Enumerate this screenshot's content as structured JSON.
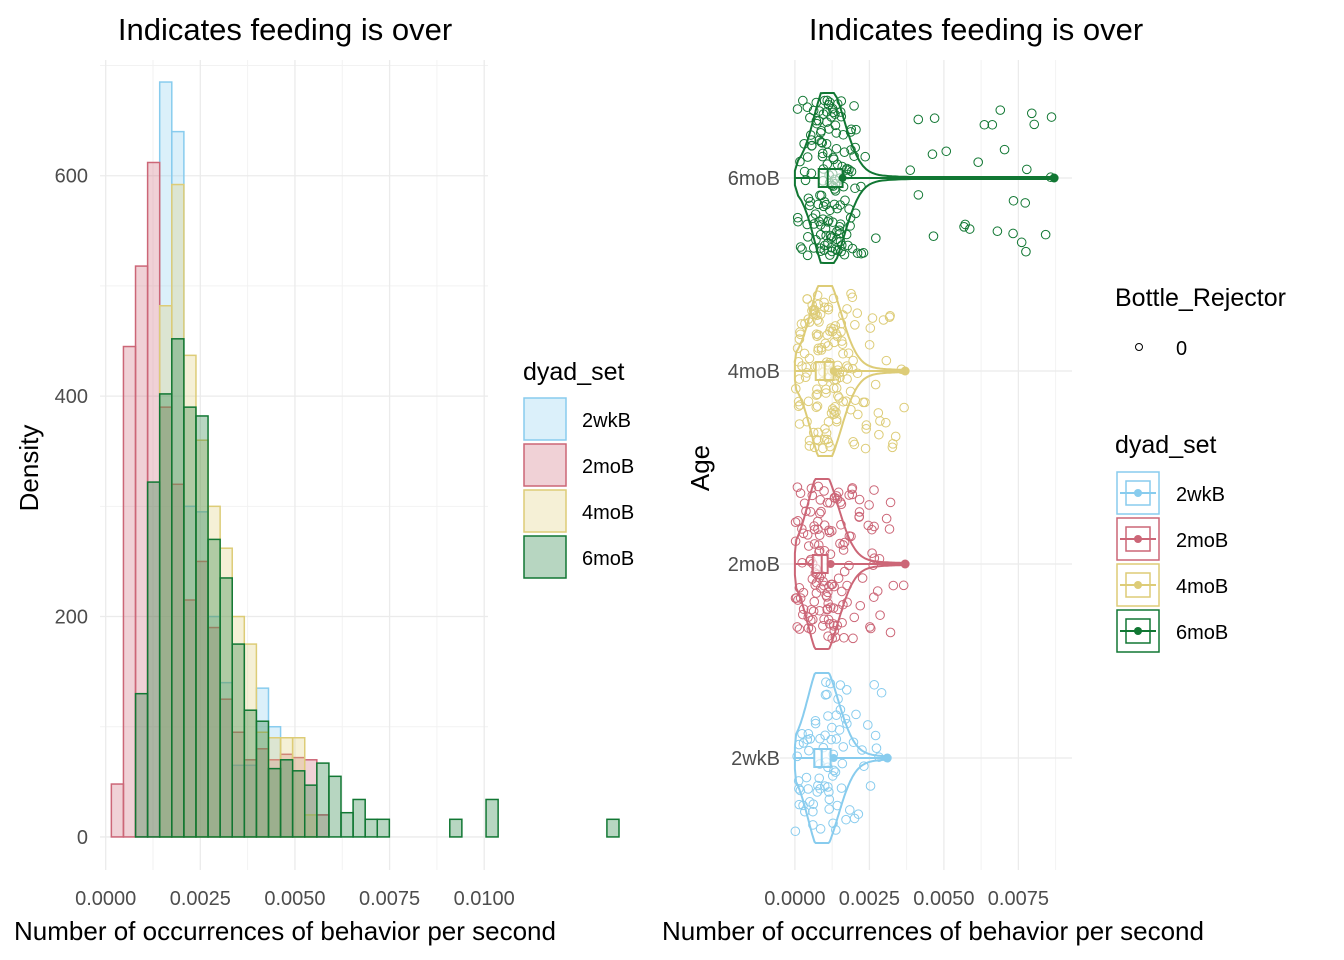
{
  "chart_data": [
    {
      "type": "histogram",
      "title": "Indicates feeding is over",
      "xlabel": "Number of occurrences of behavior per second",
      "ylabel": "Density",
      "xlim": [
        -0.00015,
        0.0101
      ],
      "ylim": [
        -30,
        705
      ],
      "xticks": [
        0.0,
        0.0025,
        0.005,
        0.0075,
        0.01
      ],
      "xtick_labels": [
        "0.0000",
        "0.0025",
        "0.0050",
        "0.0075",
        "0.0100"
      ],
      "yticks": [
        0,
        200,
        400,
        600
      ],
      "ytick_labels": [
        "0",
        "200",
        "400",
        "600"
      ],
      "bin_width": 0.0003193,
      "first_bin_left": 0.00015,
      "grid": true,
      "legend": {
        "title": "dyad_set",
        "position": "right"
      },
      "series": [
        {
          "name": "2wkB",
          "color": "#88CCEE",
          "values": [
            0,
            0,
            0,
            0,
            685,
            640,
            300,
            295,
            200,
            140,
            65,
            65,
            135,
            100,
            70
          ]
        },
        {
          "name": "2moB",
          "color": "#CC6677",
          "values": [
            48,
            445,
            518,
            612,
            390,
            320,
            215,
            250,
            190,
            125,
            95,
            70,
            80,
            70,
            75,
            72,
            70,
            20
          ]
        },
        {
          "name": "4moB",
          "color": "#DDCC77",
          "values": [
            0,
            0,
            0,
            0,
            482,
            592,
            437,
            360,
            300,
            262,
            200,
            175,
            95,
            90,
            90,
            90,
            20,
            0
          ]
        },
        {
          "name": "6moB",
          "color": "#117733",
          "values": [
            0,
            0,
            130,
            322,
            402,
            452,
            390,
            382,
            270,
            235,
            175,
            115,
            105,
            62,
            70,
            60,
            47,
            67,
            55,
            22,
            34,
            16,
            16,
            0,
            0,
            0,
            0,
            0,
            16,
            0,
            0,
            34,
            0,
            0,
            0,
            0,
            0,
            0,
            0,
            0,
            0,
            16
          ]
        }
      ]
    },
    {
      "type": "violin_box_jitter",
      "title": "Indicates feeding is over",
      "xlabel": "Number of occurrences of behavior per second",
      "ylabel": "Age",
      "xlim": [
        -0.0005,
        0.0093
      ],
      "categories": [
        "2wkB",
        "2moB",
        "4moB",
        "6moB"
      ],
      "xticks": [
        0.0,
        0.0025,
        0.005,
        0.0075
      ],
      "xtick_labels": [
        "0.0000",
        "0.0025",
        "0.0050",
        "0.0075"
      ],
      "grid": true,
      "legends": [
        {
          "title": "Bottle_Rejector",
          "entries": [
            "0"
          ]
        },
        {
          "title": "dyad_set",
          "entries": [
            "2wkB",
            "2moB",
            "4moB",
            "6moB"
          ]
        }
      ],
      "series": [
        {
          "name": "2wkB",
          "color": "#88CCEE",
          "box": {
            "q1": 0.00065,
            "median": 0.0009,
            "q3": 0.0012,
            "whisker_low": 0.0,
            "whisker_high": 0.00215
          },
          "mean": 0.0013,
          "max_mean": 0.0031,
          "max": 0.0031,
          "n": 80
        },
        {
          "name": "2moB",
          "color": "#CC6677",
          "box": {
            "q1": 0.0006,
            "median": 0.0009,
            "q3": 0.0011,
            "whisker_low": 0.0,
            "whisker_high": 0.0025
          },
          "mean": 0.0012,
          "max": 0.0037,
          "n": 150
        },
        {
          "name": "4moB",
          "color": "#DDCC77",
          "box": {
            "q1": 0.0007,
            "median": 0.001,
            "q3": 0.0013,
            "whisker_low": 0.0,
            "whisker_high": 0.0025
          },
          "mean": 0.0013,
          "max": 0.0037,
          "n": 160
        },
        {
          "name": "6moB",
          "color": "#117733",
          "box": {
            "q1": 0.0008,
            "median": 0.0011,
            "q3": 0.0016,
            "whisker_low": 0.0,
            "whisker_high": 0.0035
          },
          "mean": 0.0016,
          "max": 0.0087,
          "n": 180
        }
      ]
    }
  ]
}
